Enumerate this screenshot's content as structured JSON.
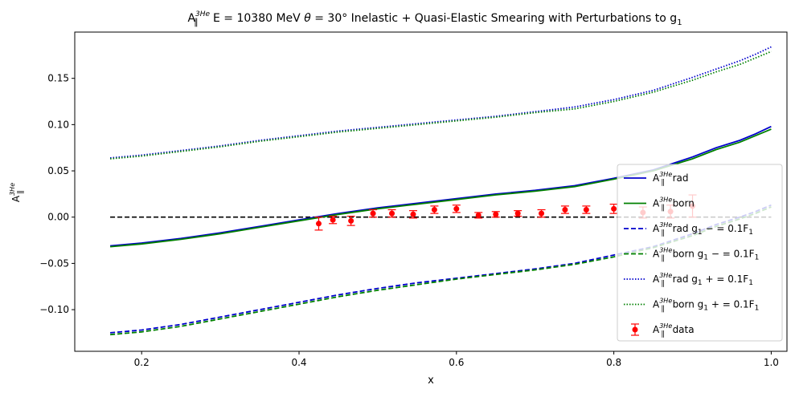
{
  "chart_data": {
    "type": "line",
    "title": "A∥³ᴴᵉ E = 10380 MeV θ = 30° Inelastic + Quasi-Elastic Smearing with Perturbations to g₁",
    "title_parts": {
      "a": "A",
      "sup": "3",
      "sup_he": "He",
      "sub": "∥",
      "rest": " E = 10380 MeV ",
      "theta": "θ",
      "rest2": " = 30° Inelastic + Quasi-Elastic Smearing with Perturbations to g",
      "sub1": "1"
    },
    "xlabel": "x",
    "ylabel": "A∥³ᴴᵉ",
    "xlim": [
      0.115,
      1.02
    ],
    "ylim": [
      -0.145,
      0.2
    ],
    "xticks": [
      0.2,
      0.4,
      0.6,
      0.8,
      1.0
    ],
    "xtick_labels": [
      "0.2",
      "0.4",
      "0.6",
      "0.8",
      "1.0"
    ],
    "yticks": [
      -0.1,
      -0.05,
      0.0,
      0.05,
      0.1,
      0.15
    ],
    "ytick_labels": [
      "−0.10",
      "−0.05",
      "0.00",
      "0.05",
      "0.10",
      "0.15"
    ],
    "grid": false,
    "legend_position": "lower-right",
    "zero_line": {
      "y": 0,
      "x_range": [
        0.16,
        1.0
      ],
      "color": "#000000",
      "style": "dashed"
    },
    "series": [
      {
        "name": "A∥³ᴴᵉ rad",
        "legend_rest": " rad",
        "color": "#0000cc",
        "style": "solid",
        "x": [
          0.16,
          0.2,
          0.25,
          0.3,
          0.35,
          0.4,
          0.45,
          0.5,
          0.55,
          0.6,
          0.65,
          0.7,
          0.75,
          0.8,
          0.85,
          0.9,
          0.93,
          0.96,
          0.98,
          1.0
        ],
        "y": [
          -0.031,
          -0.028,
          -0.023,
          -0.017,
          -0.01,
          -0.003,
          0.004,
          0.01,
          0.015,
          0.02,
          0.025,
          0.029,
          0.034,
          0.042,
          0.051,
          0.065,
          0.075,
          0.083,
          0.09,
          0.098
        ]
      },
      {
        "name": "A∥³ᴴᵉ born",
        "legend_rest": " born",
        "color": "#008000",
        "style": "solid",
        "x": [
          0.16,
          0.2,
          0.25,
          0.3,
          0.35,
          0.4,
          0.45,
          0.5,
          0.55,
          0.6,
          0.65,
          0.7,
          0.75,
          0.8,
          0.85,
          0.9,
          0.93,
          0.96,
          0.98,
          1.0
        ],
        "y": [
          -0.032,
          -0.029,
          -0.024,
          -0.018,
          -0.011,
          -0.004,
          0.003,
          0.009,
          0.014,
          0.019,
          0.024,
          0.028,
          0.033,
          0.041,
          0.05,
          0.063,
          0.073,
          0.081,
          0.088,
          0.095
        ]
      },
      {
        "name": "A∥³ᴴᵉ rad g₁ − = 0.1F₁",
        "legend_rest": " rad g",
        "legend_tail": " − = 0.1F",
        "color": "#0000cc",
        "style": "dashed",
        "x": [
          0.16,
          0.2,
          0.25,
          0.3,
          0.35,
          0.4,
          0.45,
          0.5,
          0.55,
          0.6,
          0.65,
          0.7,
          0.75,
          0.8,
          0.85,
          0.9,
          0.93,
          0.96,
          0.98,
          1.0
        ],
        "y": [
          -0.125,
          -0.122,
          -0.116,
          -0.108,
          -0.1,
          -0.092,
          -0.084,
          -0.077,
          -0.071,
          -0.066,
          -0.061,
          -0.056,
          -0.05,
          -0.041,
          -0.032,
          -0.018,
          -0.008,
          0.0,
          0.006,
          0.013
        ]
      },
      {
        "name": "A∥³ᴴᵉ born g₁ − = 0.1F₁",
        "legend_rest": " born g",
        "legend_tail": " − = 0.1F",
        "color": "#008000",
        "style": "dashed",
        "x": [
          0.16,
          0.2,
          0.25,
          0.3,
          0.35,
          0.4,
          0.45,
          0.5,
          0.55,
          0.6,
          0.65,
          0.7,
          0.75,
          0.8,
          0.85,
          0.9,
          0.93,
          0.96,
          0.98,
          1.0
        ],
        "y": [
          -0.127,
          -0.124,
          -0.118,
          -0.11,
          -0.102,
          -0.094,
          -0.086,
          -0.079,
          -0.073,
          -0.067,
          -0.062,
          -0.057,
          -0.051,
          -0.043,
          -0.033,
          -0.02,
          -0.01,
          -0.002,
          0.004,
          0.011
        ]
      },
      {
        "name": "A∥³ᴴᵉ rad g₁ + = 0.1F₁",
        "legend_rest": " rad g",
        "legend_tail": " + = 0.1F",
        "color": "#0000cc",
        "style": "dotted",
        "x": [
          0.16,
          0.2,
          0.25,
          0.3,
          0.35,
          0.4,
          0.45,
          0.5,
          0.55,
          0.6,
          0.65,
          0.7,
          0.75,
          0.8,
          0.85,
          0.9,
          0.93,
          0.96,
          0.98,
          1.0
        ],
        "y": [
          0.064,
          0.067,
          0.072,
          0.077,
          0.083,
          0.088,
          0.093,
          0.097,
          0.101,
          0.105,
          0.109,
          0.114,
          0.119,
          0.127,
          0.137,
          0.151,
          0.16,
          0.169,
          0.176,
          0.184
        ]
      },
      {
        "name": "A∥³ᴴᵉ born g₁ + = 0.1F₁",
        "legend_rest": " born g",
        "legend_tail": " + = 0.1F",
        "color": "#008000",
        "style": "dotted",
        "x": [
          0.16,
          0.2,
          0.25,
          0.3,
          0.35,
          0.4,
          0.45,
          0.5,
          0.55,
          0.6,
          0.65,
          0.7,
          0.75,
          0.8,
          0.85,
          0.9,
          0.93,
          0.96,
          0.98,
          1.0
        ],
        "y": [
          0.063,
          0.066,
          0.071,
          0.076,
          0.082,
          0.087,
          0.092,
          0.096,
          0.1,
          0.104,
          0.108,
          0.113,
          0.117,
          0.125,
          0.135,
          0.148,
          0.157,
          0.165,
          0.172,
          0.179
        ]
      }
    ],
    "data_series": {
      "name": "A∥³ᴴᵉ data",
      "legend_rest": " data",
      "color": "#ff0000",
      "x": [
        0.425,
        0.443,
        0.466,
        0.494,
        0.518,
        0.545,
        0.572,
        0.6,
        0.628,
        0.65,
        0.678,
        0.708,
        0.738,
        0.765,
        0.8,
        0.837,
        0.872,
        0.9
      ],
      "y": [
        -0.007,
        -0.003,
        -0.004,
        0.004,
        0.004,
        0.003,
        0.008,
        0.009,
        0.002,
        0.003,
        0.004,
        0.004,
        0.008,
        0.008,
        0.009,
        0.005,
        0.006,
        0.012
      ],
      "err": [
        0.007,
        0.004,
        0.005,
        0.004,
        0.004,
        0.004,
        0.004,
        0.004,
        0.003,
        0.003,
        0.003,
        0.004,
        0.004,
        0.004,
        0.005,
        0.006,
        0.007,
        0.012
      ]
    }
  }
}
